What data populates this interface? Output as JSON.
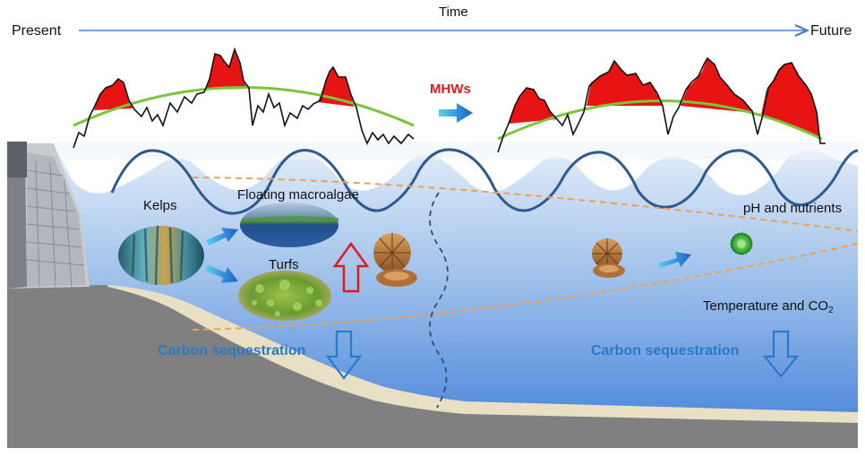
{
  "time_axis": {
    "label": "Time",
    "start_label": "Present",
    "end_label": "Future",
    "color": "#4a7fc8"
  },
  "mhws": {
    "label": "MHWs",
    "label_color": "#e01b1b",
    "fill_color": "#e81414",
    "climatology_color": "#7cc43a"
  },
  "labels": {
    "kelps": "Kelps",
    "floating_macroalgae": "Floating macroalgae",
    "turfs": "Turfs",
    "ph_nutrients": "pH and nutrients",
    "temperature_co2": "Temperature and CO",
    "co2_subscript": "2"
  },
  "carbon_sequestration": {
    "left_label": "Carbon sequestration",
    "right_label": "Carbon sequestration",
    "color": "#2a78c8"
  },
  "colors": {
    "sea_top": "#dde9f7",
    "sea_bottom": "#3f7ed8",
    "seafloor": "#808080",
    "sand": "#e8dfc4",
    "dashed_lines": "#f0a050",
    "wave": "#2f5a90"
  },
  "icons": [
    "timeline-arrow-icon",
    "transition-arrow-icon",
    "kelp-forest-image",
    "floating-macroalgae-image",
    "turfs-image",
    "sea-urchin-icon",
    "phytoplankton-icon",
    "up-arrow-icon",
    "down-arrow-icon",
    "seawall-image"
  ]
}
